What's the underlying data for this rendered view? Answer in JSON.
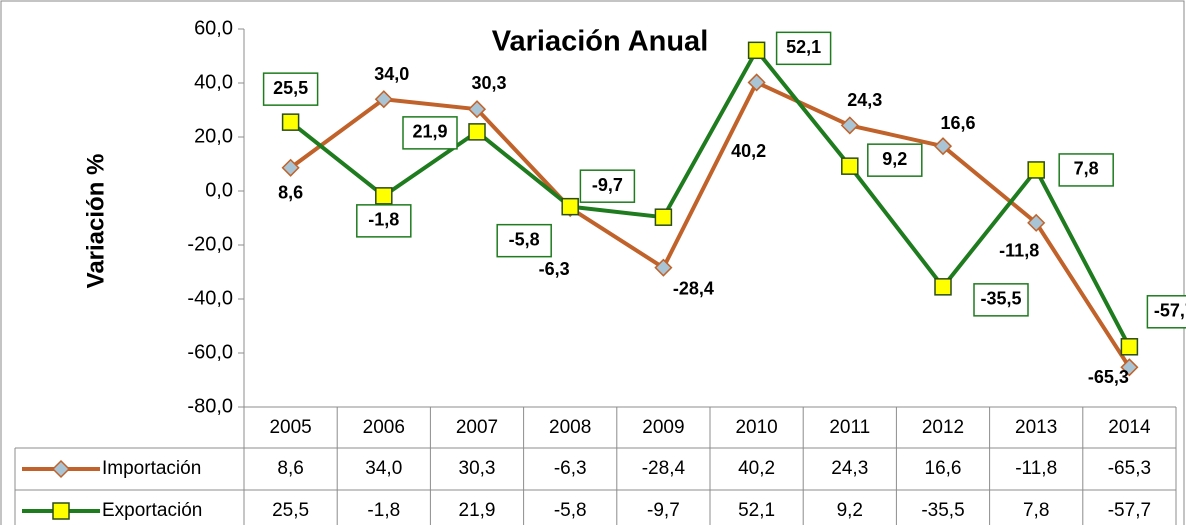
{
  "chart_data": {
    "type": "line",
    "title": "Variación Anual",
    "y_label": "Variación %",
    "categories": [
      "2005",
      "2006",
      "2007",
      "2008",
      "2009",
      "2010",
      "2011",
      "2012",
      "2013",
      "2014"
    ],
    "series": [
      {
        "name": "Importación",
        "color": "#c0622a",
        "marker_fill": "#a9c4d4",
        "label_color": "#c00000",
        "values": [
          8.6,
          34.0,
          30.3,
          -6.3,
          -28.4,
          40.2,
          24.3,
          16.6,
          -11.8,
          -65.3
        ],
        "value_labels": [
          "8,6",
          "34,0",
          "30,3",
          "-6,3",
          "-28,4",
          "40,2",
          "24,3",
          "16,6",
          "-11,8",
          "-65,3"
        ]
      },
      {
        "name": "Exportación",
        "color": "#1e7b1e",
        "marker_fill": "#ffff00",
        "label_color": "#2f5f6f",
        "values": [
          25.5,
          -1.8,
          21.9,
          -5.8,
          -9.7,
          52.1,
          9.2,
          -35.5,
          7.8,
          -57.7
        ],
        "value_labels": [
          "25,5",
          "-1,8",
          "21,9",
          "-5,8",
          "-9,7",
          "52,1",
          "9,2",
          "-35,5",
          "7,8",
          "-57,7"
        ]
      }
    ],
    "ylim": [
      -80,
      60
    ],
    "yticks": [
      {
        "value": -80,
        "label": "-80,0"
      },
      {
        "value": -60,
        "label": "-60,0"
      },
      {
        "value": -40,
        "label": "-40,0"
      },
      {
        "value": -20,
        "label": "-20,0"
      },
      {
        "value": 0,
        "label": "0,0"
      },
      {
        "value": 20,
        "label": "20,0"
      },
      {
        "value": 40,
        "label": "40,0"
      },
      {
        "value": 60,
        "label": "60,0"
      }
    ],
    "grid": false
  }
}
